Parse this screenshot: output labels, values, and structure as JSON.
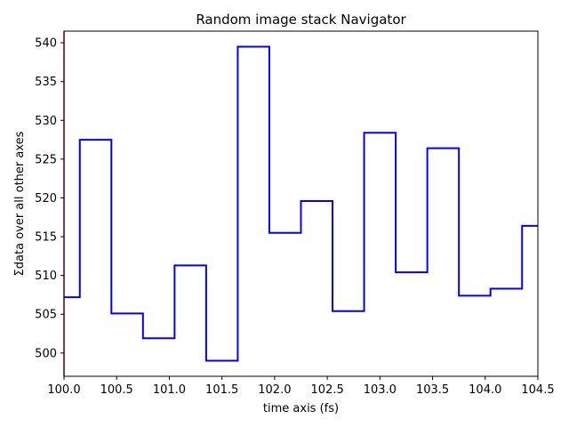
{
  "chart_data": {
    "type": "line",
    "drawstyle": "steps-mid",
    "title": "Random image stack Navigator",
    "xlabel": "time axis (fs)",
    "ylabel": "Σdata over all other axes",
    "xlim": [
      100.0,
      104.5
    ],
    "ylim": [
      497.0,
      541.5
    ],
    "xticks": [
      100.0,
      100.5,
      101.0,
      101.5,
      102.0,
      102.5,
      103.0,
      103.5,
      104.0,
      104.5
    ],
    "xtick_labels": [
      "100.0",
      "100.5",
      "101.0",
      "101.5",
      "102.0",
      "102.5",
      "103.0",
      "103.5",
      "104.0",
      "104.5"
    ],
    "yticks": [
      500,
      505,
      510,
      515,
      520,
      525,
      530,
      535,
      540
    ],
    "ytick_labels": [
      "500",
      "505",
      "510",
      "515",
      "520",
      "525",
      "530",
      "535",
      "540"
    ],
    "grid": false,
    "series": [
      {
        "color": "#0000ff",
        "x": [
          100.0,
          100.3,
          100.6,
          100.9,
          101.2,
          101.5,
          101.8,
          102.1,
          102.4,
          102.7,
          103.0,
          103.3,
          103.6,
          103.9,
          104.2,
          104.5
        ],
        "y": [
          507.2,
          527.5,
          505.1,
          501.9,
          511.3,
          499.0,
          539.5,
          515.5,
          519.6,
          505.4,
          528.4,
          510.4,
          526.4,
          507.4,
          508.3,
          516.4
        ]
      }
    ],
    "indicator": {
      "color": "#ff0000",
      "x": 100.0
    }
  }
}
